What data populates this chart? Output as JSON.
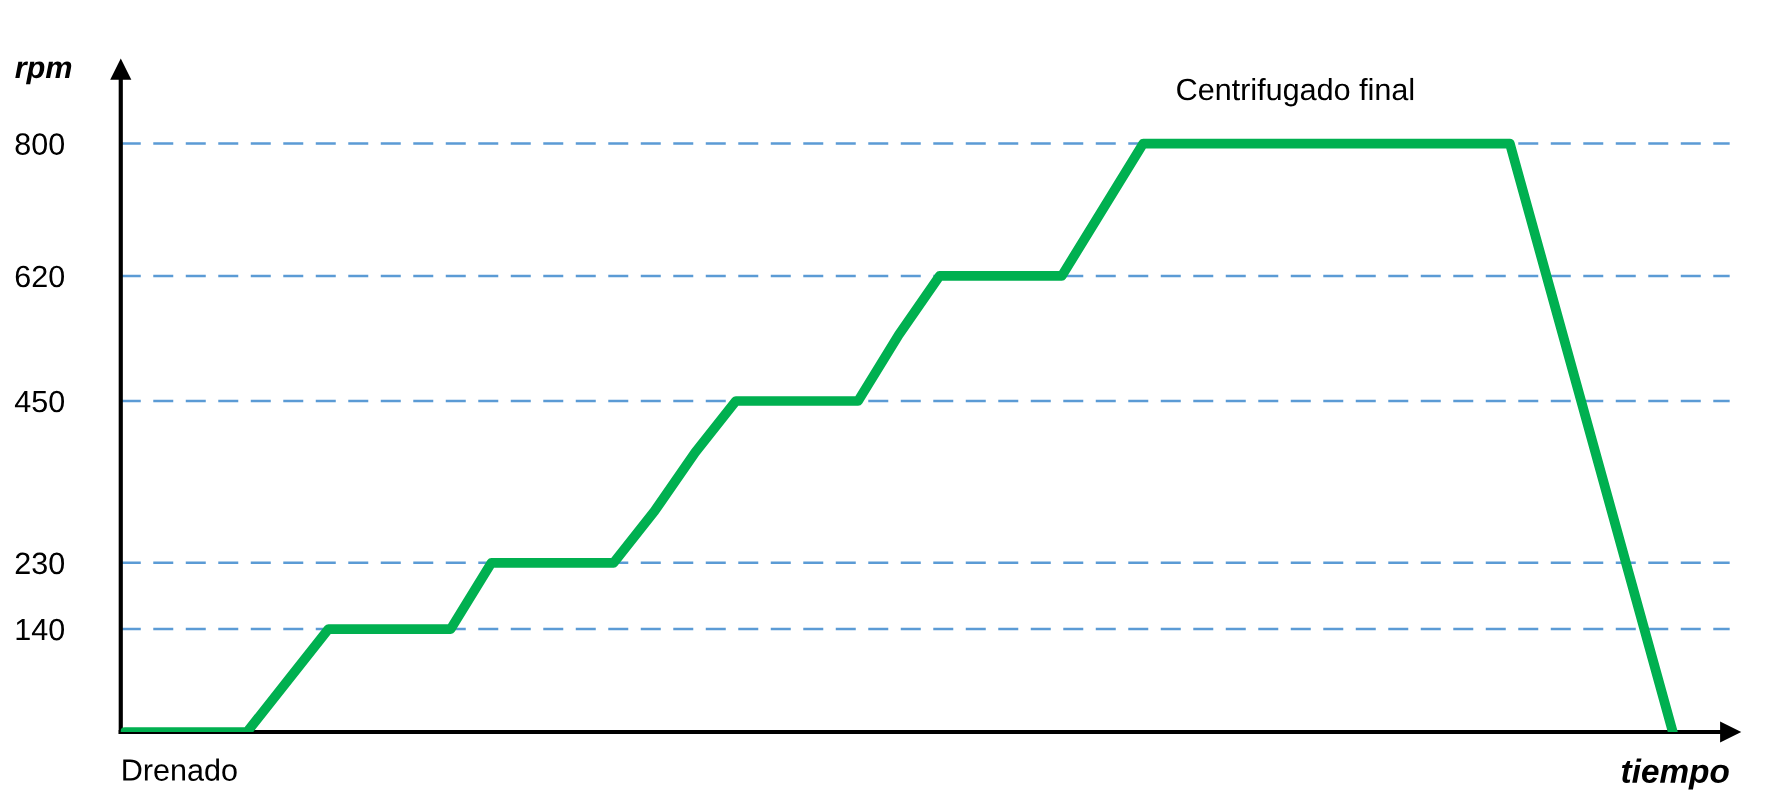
{
  "chart_data": {
    "type": "line",
    "ylabel": "rpm",
    "xlabel": "tiempo",
    "categories": [
      null,
      null,
      null,
      null,
      null,
      null,
      null,
      null,
      null,
      null,
      null,
      null,
      null,
      null,
      null,
      null,
      null,
      null,
      null,
      null,
      null,
      null,
      null,
      null,
      null,
      null,
      null,
      null,
      null,
      null,
      null,
      null,
      null,
      null,
      null,
      null,
      null,
      null,
      null
    ],
    "values": [
      0,
      0,
      0,
      0,
      70,
      140,
      140,
      140,
      140,
      230,
      230,
      230,
      230,
      300,
      380,
      450,
      450,
      450,
      450,
      540,
      620,
      620,
      620,
      620,
      710,
      800,
      800,
      800,
      800,
      800,
      800,
      800,
      800,
      800,
      800,
      600,
      400,
      200,
      0
    ],
    "color": "#00b050",
    "ylim": [
      0,
      900
    ],
    "yticks": [
      140,
      230,
      450,
      620,
      800
    ],
    "grid": "y",
    "line_style": "solid",
    "marker": "none",
    "annotations": [
      "Centrifugado final",
      "Drenado"
    ]
  }
}
